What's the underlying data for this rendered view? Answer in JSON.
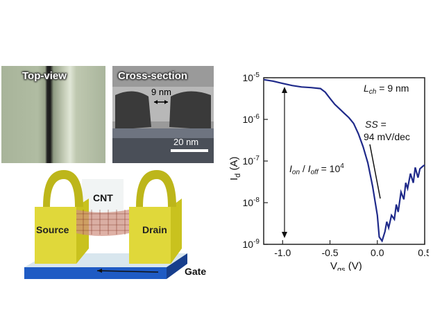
{
  "top_view": {
    "label": "Top-view"
  },
  "cross_section": {
    "label": "Cross-section",
    "gap_label": "9 nm",
    "scale_label": "20 nm"
  },
  "device": {
    "cnt_label": "CNT",
    "source_label": "Source",
    "drain_label": "Drain",
    "gate_label": "Gate"
  },
  "chart_data": {
    "type": "line",
    "xlabel": "V_gs (V)",
    "ylabel": "I_d (A)",
    "xlim": [
      -1.2,
      0.5
    ],
    "ylim": [
      1e-09,
      1e-05
    ],
    "yscale": "log",
    "grid": false,
    "xticks": [
      "-1.0",
      "-0.5",
      "0.0",
      "0.5"
    ],
    "yticks": [
      "10^-9",
      "10^-8",
      "10^-7",
      "10^-6",
      "10^-5"
    ],
    "annotations": {
      "lch": "L_ch = 9 nm",
      "ss_line1": "SS =",
      "ss_line2": "94 mV/dec",
      "onoff": "I_on / I_off = 10^4"
    },
    "series": [
      {
        "x": [
          -1.2,
          -1.1,
          -1.0,
          -0.9,
          -0.8,
          -0.7,
          -0.6,
          -0.55,
          -0.5,
          -0.45,
          -0.4,
          -0.35,
          -0.3,
          -0.25,
          -0.2,
          -0.15,
          -0.1,
          -0.05,
          0.0,
          0.02,
          0.05,
          0.08,
          0.1,
          0.12,
          0.15,
          0.18,
          0.2,
          0.22,
          0.25,
          0.28,
          0.3,
          0.32,
          0.35,
          0.38,
          0.4,
          0.43,
          0.45,
          0.48,
          0.5
        ],
        "y": [
          9e-06,
          8.3e-06,
          7.3e-06,
          6.5e-06,
          6e-06,
          5.8e-06,
          5.5e-06,
          4.5e-06,
          3.2e-06,
          2.3e-06,
          1.8e-06,
          1.4e-06,
          1.1e-06,
          8e-07,
          4.5e-07,
          2.2e-07,
          9e-08,
          2.5e-08,
          5e-09,
          1.5e-09,
          1.2e-09,
          2e-09,
          3.5e-09,
          2.5e-09,
          5e-09,
          4e-09,
          9e-09,
          6e-09,
          1.8e-08,
          1.2e-08,
          3e-08,
          2.2e-08,
          5e-08,
          3e-08,
          7e-08,
          4e-08,
          6.5e-08,
          7.5e-08,
          8e-08
        ]
      }
    ]
  }
}
